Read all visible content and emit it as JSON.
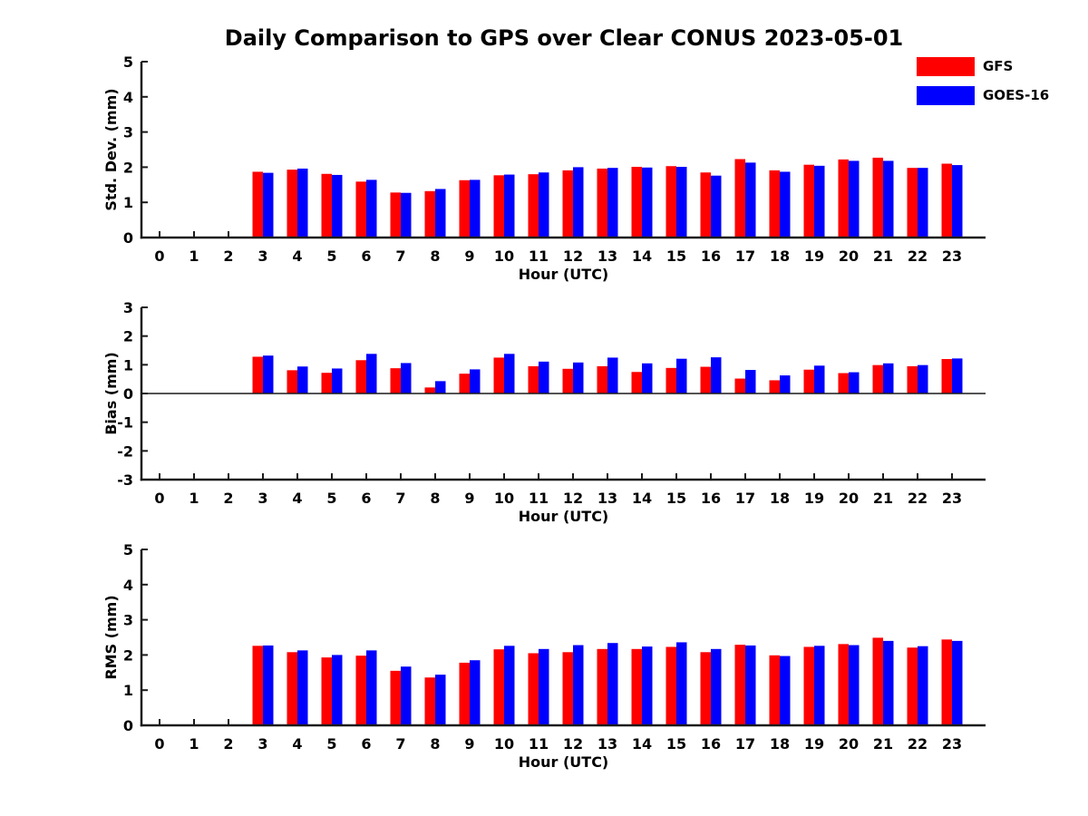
{
  "page": {
    "title": "Daily Comparison to GPS over Clear CONUS 2023-05-01",
    "background": "#ffffff"
  },
  "legend": {
    "position": "top-right",
    "items": [
      {
        "label": "GFS",
        "color": "#ff0000"
      },
      {
        "label": "GOES-16",
        "color": "#0000ff"
      }
    ]
  },
  "colors": {
    "gfs_bar": "#ff0000",
    "goes16_bar": "#0000ff",
    "axis_line": "#1a1a1a",
    "text": "#000000"
  },
  "chart_data": [
    {
      "type": "bar",
      "panel": "std_dev",
      "title": "Daily Comparison to GPS over Clear CONUS 2023-05-01",
      "xlabel": "Hour (UTC)",
      "ylabel": "Std. Dev. (mm)",
      "ylim": [
        0,
        5
      ],
      "yticks": [
        0,
        1,
        2,
        3,
        4,
        5
      ],
      "grid": false,
      "legend": [
        "GFS",
        "GOES-16"
      ],
      "legend_position": "top-right-of-figure",
      "categories": [
        0,
        1,
        2,
        3,
        4,
        5,
        6,
        7,
        8,
        9,
        10,
        11,
        12,
        13,
        14,
        15,
        16,
        17,
        18,
        19,
        20,
        21,
        22,
        23
      ],
      "series": [
        {
          "name": "GFS",
          "color": "#ff0000",
          "values": [
            null,
            null,
            null,
            1.87,
            1.93,
            1.81,
            1.59,
            1.28,
            1.32,
            1.63,
            1.77,
            1.8,
            1.91,
            1.96,
            2.01,
            2.03,
            1.85,
            2.23,
            1.91,
            2.07,
            2.22,
            2.27,
            1.98,
            2.1
          ]
        },
        {
          "name": "GOES-16",
          "color": "#0000ff",
          "values": [
            null,
            null,
            null,
            1.84,
            1.96,
            1.78,
            1.64,
            1.27,
            1.38,
            1.64,
            1.79,
            1.85,
            2.0,
            1.98,
            1.99,
            2.01,
            1.76,
            2.13,
            1.87,
            2.04,
            2.18,
            2.18,
            1.98,
            2.06
          ]
        }
      ]
    },
    {
      "type": "bar",
      "panel": "bias",
      "title": "",
      "xlabel": "Hour (UTC)",
      "ylabel": "Bias (mm)",
      "ylim": [
        -3,
        3
      ],
      "yticks": [
        -3,
        -2,
        -1,
        0,
        1,
        2,
        3
      ],
      "grid": false,
      "zero_line": true,
      "categories": [
        0,
        1,
        2,
        3,
        4,
        5,
        6,
        7,
        8,
        9,
        10,
        11,
        12,
        13,
        14,
        15,
        16,
        17,
        18,
        19,
        20,
        21,
        22,
        23
      ],
      "series": [
        {
          "name": "GFS",
          "color": "#ff0000",
          "values": [
            null,
            null,
            null,
            1.28,
            0.81,
            0.72,
            1.16,
            0.88,
            0.21,
            0.69,
            1.25,
            0.95,
            0.86,
            0.95,
            0.75,
            0.89,
            0.93,
            0.52,
            0.46,
            0.83,
            0.71,
            0.99,
            0.95,
            1.2
          ]
        },
        {
          "name": "GOES-16",
          "color": "#0000ff",
          "values": [
            null,
            null,
            null,
            1.32,
            0.94,
            0.87,
            1.38,
            1.06,
            0.43,
            0.84,
            1.38,
            1.11,
            1.08,
            1.25,
            1.05,
            1.21,
            1.26,
            0.82,
            0.63,
            0.97,
            0.74,
            1.05,
            0.99,
            1.22
          ]
        }
      ]
    },
    {
      "type": "bar",
      "panel": "rms",
      "title": "",
      "xlabel": "Hour (UTC)",
      "ylabel": "RMS (mm)",
      "ylim": [
        0,
        5
      ],
      "yticks": [
        0,
        1,
        2,
        3,
        4,
        5
      ],
      "grid": false,
      "categories": [
        0,
        1,
        2,
        3,
        4,
        5,
        6,
        7,
        8,
        9,
        10,
        11,
        12,
        13,
        14,
        15,
        16,
        17,
        18,
        19,
        20,
        21,
        22,
        23
      ],
      "series": [
        {
          "name": "GFS",
          "color": "#ff0000",
          "values": [
            null,
            null,
            null,
            2.26,
            2.08,
            1.93,
            1.98,
            1.55,
            1.36,
            1.78,
            2.16,
            2.05,
            2.08,
            2.17,
            2.17,
            2.23,
            2.08,
            2.29,
            1.99,
            2.23,
            2.31,
            2.49,
            2.21,
            2.44
          ]
        },
        {
          "name": "GOES-16",
          "color": "#0000ff",
          "values": [
            null,
            null,
            null,
            2.27,
            2.13,
            2.0,
            2.13,
            1.67,
            1.44,
            1.85,
            2.26,
            2.17,
            2.28,
            2.34,
            2.24,
            2.36,
            2.17,
            2.27,
            1.97,
            2.26,
            2.28,
            2.4,
            2.25,
            2.4
          ]
        }
      ]
    }
  ]
}
